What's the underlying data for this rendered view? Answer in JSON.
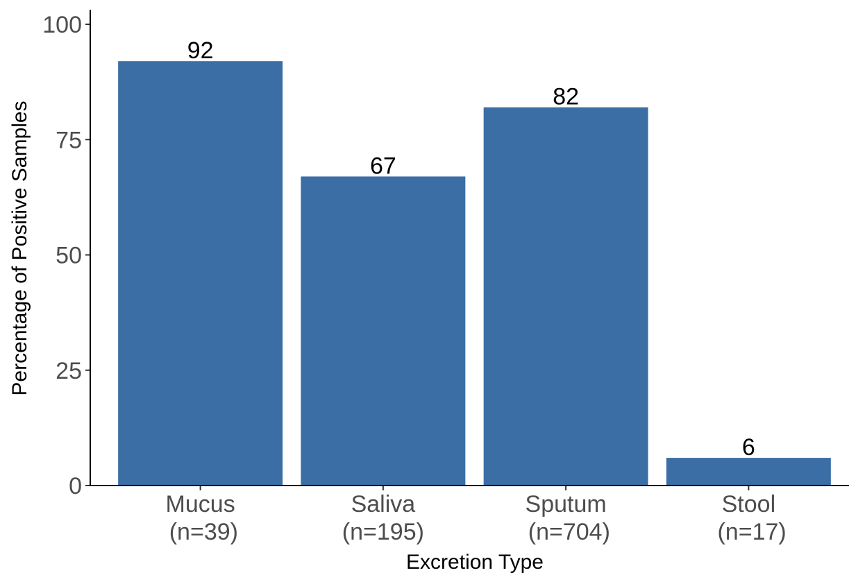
{
  "chart_data": {
    "type": "bar",
    "categories": [
      {
        "line1": "Mucus",
        "line2": " (n=39)"
      },
      {
        "line1": "Saliva",
        "line2": "(n=195)"
      },
      {
        "line1": "Sputum",
        "line2": " (n=704)"
      },
      {
        "line1": "Stool",
        "line2": " (n=17)"
      }
    ],
    "values": [
      92,
      67,
      82,
      6
    ],
    "value_labels": [
      "92",
      "67",
      "82",
      "6"
    ],
    "xlabel": "Excretion Type",
    "ylabel": "Percentage of Positive Samples",
    "ylim": [
      0,
      100
    ],
    "yticks": [
      0,
      25,
      50,
      75,
      100
    ],
    "bar_color": "#3a6ea5",
    "grid": false,
    "legend": "none"
  }
}
